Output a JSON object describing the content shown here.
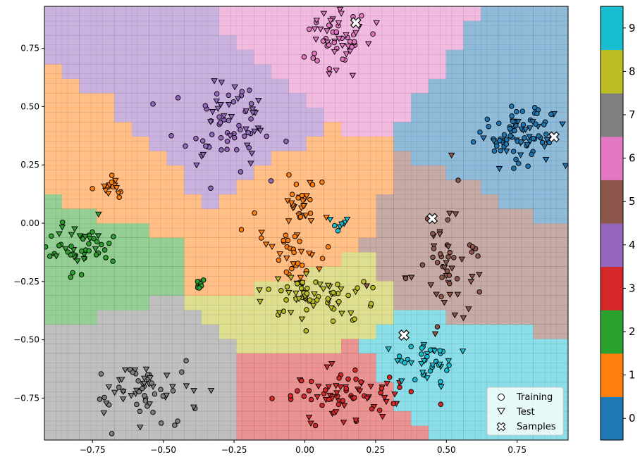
{
  "chart_data": {
    "type": "scatter",
    "title": "",
    "xlabel": "",
    "ylabel": "",
    "xlim": [
      -0.92,
      0.93
    ],
    "ylim": [
      -0.93,
      0.93
    ],
    "xticks": [
      -0.75,
      -0.5,
      -0.25,
      0.0,
      0.25,
      0.5,
      0.75
    ],
    "xtick_labels": [
      "−0.75",
      "−0.50",
      "−0.25",
      "0.00",
      "0.25",
      "0.50",
      "0.75"
    ],
    "yticks": [
      0.75,
      0.5,
      0.25,
      0.0,
      -0.25,
      -0.5,
      -0.75
    ],
    "ytick_labels": [
      "0.75",
      "0.50",
      "0.25",
      "0.00",
      "−0.25",
      "−0.50",
      "−0.75"
    ],
    "grid": true,
    "background": "decision regions of a classifier over a regular grid, colored by predicted class",
    "classes": [
      0,
      1,
      2,
      3,
      4,
      5,
      6,
      7,
      8,
      9
    ],
    "class_colors": [
      "#1f77b4",
      "#ff7f0e",
      "#2ca02c",
      "#d62728",
      "#9467bd",
      "#8c564b",
      "#e377c2",
      "#7f7f7f",
      "#bcbd22",
      "#17becf"
    ],
    "colorbar": {
      "labels": [
        "0",
        "1",
        "2",
        "3",
        "4",
        "5",
        "6",
        "7",
        "8",
        "9"
      ],
      "position": "right"
    },
    "legend": {
      "position": "bottom-right",
      "entries": [
        {
          "label": "Training",
          "marker": "circle"
        },
        {
          "label": "Test",
          "marker": "triangle-down"
        },
        {
          "label": "Samples",
          "marker": "x-filled"
        }
      ]
    },
    "clusters": [
      {
        "class": 0,
        "center": [
          0.76,
          0.38
        ],
        "spread": [
          0.08,
          0.06
        ],
        "count": 90
      },
      {
        "class": 1,
        "center": [
          -0.01,
          0.08
        ],
        "spread": [
          0.03,
          0.05
        ],
        "count": 30
      },
      {
        "class": 1,
        "center": [
          -0.05,
          -0.12
        ],
        "spread": [
          0.05,
          0.08
        ],
        "count": 38
      },
      {
        "class": 1,
        "center": [
          -0.68,
          0.16
        ],
        "spread": [
          0.03,
          0.02
        ],
        "count": 16
      },
      {
        "class": 2,
        "center": [
          -0.8,
          -0.1
        ],
        "spread": [
          0.07,
          0.05
        ],
        "count": 55
      },
      {
        "class": 2,
        "center": [
          -0.38,
          -0.26
        ],
        "spread": [
          0.01,
          0.01
        ],
        "count": 8
      },
      {
        "class": 3,
        "center": [
          0.12,
          -0.75
        ],
        "spread": [
          0.11,
          0.07
        ],
        "count": 80
      },
      {
        "class": 4,
        "center": [
          -0.28,
          0.42
        ],
        "spread": [
          0.09,
          0.09
        ],
        "count": 75
      },
      {
        "class": 5,
        "center": [
          0.5,
          -0.15
        ],
        "spread": [
          0.07,
          0.14
        ],
        "count": 58
      },
      {
        "class": 6,
        "center": [
          0.1,
          0.78
        ],
        "spread": [
          0.06,
          0.07
        ],
        "count": 62
      },
      {
        "class": 7,
        "center": [
          -0.58,
          -0.7
        ],
        "spread": [
          0.09,
          0.06
        ],
        "count": 65
      },
      {
        "class": 8,
        "center": [
          0.04,
          -0.32
        ],
        "spread": [
          0.11,
          0.05
        ],
        "count": 72
      },
      {
        "class": 9,
        "center": [
          0.43,
          -0.6
        ],
        "spread": [
          0.06,
          0.05
        ],
        "count": 42
      },
      {
        "class": 9,
        "center": [
          0.12,
          0.0
        ],
        "spread": [
          0.02,
          0.01
        ],
        "count": 8
      }
    ],
    "samples": [
      {
        "x": 0.18,
        "y": 0.86
      },
      {
        "x": 0.45,
        "y": 0.02
      },
      {
        "x": 0.88,
        "y": 0.37
      },
      {
        "x": 0.35,
        "y": -0.48
      }
    ]
  }
}
